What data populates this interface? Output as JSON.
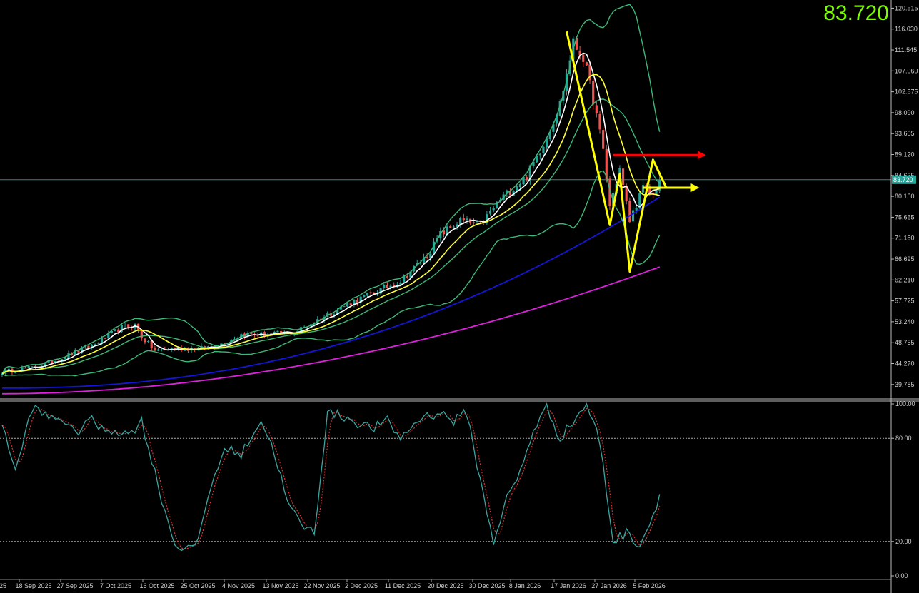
{
  "current_price": "83.720",
  "current_price_tag": "83.720",
  "colors": {
    "background": "#000000",
    "bull": "#26a69a",
    "bear": "#ef5350",
    "ma_fast": "#ffffff",
    "ma_mid": "#ffff33",
    "bollinger": "#3cb878",
    "ma_slow": "#1515d8",
    "ma_long": "#e020e0",
    "stoch_k": "#3aa6a0",
    "stoch_d": "#e03030",
    "price_text": "#7CFC00",
    "arrow_yellow": "#ffff00",
    "arrow_red": "#ff0000"
  },
  "chart_data": [
    {
      "type": "candlestick",
      "title": "",
      "ylim": [
        37.0,
        121.5
      ],
      "y_ticks": [
        "120.515",
        "116.030",
        "111.545",
        "107.060",
        "102.575",
        "98.090",
        "93.605",
        "89.120",
        "84.635",
        "80.150",
        "75.665",
        "71.180",
        "66.695",
        "62.210",
        "57.725",
        "53.240",
        "48.755",
        "44.270",
        "39.785"
      ],
      "x_ticks": [
        "25",
        "18 Sep 2025",
        "27 Sep 2025",
        "7 Oct 2025",
        "16 Oct 2025",
        "25 Oct 2025",
        "4 Nov 2025",
        "13 Nov 2025",
        "22 Nov 2025",
        "2 Dec 2025",
        "11 Dec 2025",
        "20 Dec 2025",
        "30 Dec 2025",
        "8 Jan 2026",
        "17 Jan 2026",
        "27 Jan 2026",
        "5 Feb 2026"
      ],
      "close_anchors": [
        [
          0,
          42.5
        ],
        [
          10,
          43.5
        ],
        [
          18,
          45.5
        ],
        [
          28,
          48.5
        ],
        [
          36,
          52.0
        ],
        [
          40,
          52.5
        ],
        [
          42,
          50.0
        ],
        [
          46,
          47.0
        ],
        [
          52,
          47.5
        ],
        [
          60,
          47.5
        ],
        [
          66,
          48.5
        ],
        [
          72,
          50.5
        ],
        [
          80,
          50.5
        ],
        [
          88,
          51.0
        ],
        [
          96,
          54.0
        ],
        [
          104,
          57.0
        ],
        [
          112,
          59.5
        ],
        [
          120,
          62.0
        ],
        [
          128,
          67.5
        ],
        [
          132,
          72.0
        ],
        [
          138,
          75.0
        ],
        [
          144,
          74.0
        ],
        [
          150,
          79.5
        ],
        [
          158,
          84.5
        ],
        [
          164,
          93.0
        ],
        [
          168,
          100.0
        ],
        [
          172,
          113.0
        ],
        [
          175,
          110.0
        ],
        [
          178,
          101.0
        ],
        [
          181,
          90.0
        ],
        [
          183,
          78.0
        ],
        [
          186,
          86.0
        ],
        [
          189,
          75.0
        ],
        [
          193,
          82.0
        ],
        [
          196,
          80.5
        ],
        [
          198,
          83.72
        ]
      ],
      "candle_count": 199,
      "overlays": [
        {
          "name": "",
          "period": 5,
          "color": "#ffffff"
        },
        {
          "name": "",
          "period": 12,
          "color": "#ffff33"
        },
        {
          "name": "",
          "period": 20,
          "color": "#3cb878",
          "bands": true
        },
        {
          "name": "",
          "period": 50,
          "color": "#1515d8"
        },
        {
          "name": "",
          "period": 100,
          "color": "#e020e0"
        }
      ],
      "horizontal_line": 83.72,
      "annotations": {
        "yellow_path": [
          [
            170,
            115.5
          ],
          [
            183,
            74.0
          ],
          [
            186,
            85.0
          ],
          [
            189,
            64.0
          ],
          [
            196,
            88.0
          ],
          [
            200,
            82.0
          ]
        ],
        "yellow_arrow_right": {
          "y": 82.0,
          "x_from": 193,
          "x_to": 210
        },
        "red_arrow_right": {
          "y": 89.0,
          "x_from": 184,
          "x_to": 212
        }
      }
    },
    {
      "type": "line",
      "title": "",
      "ylim": [
        0,
        100
      ],
      "y_ticks": [
        "100.00",
        "80.00",
        "20.00",
        "0.00"
      ],
      "levels": [
        80,
        20
      ],
      "k_anchors": [
        [
          0,
          90
        ],
        [
          4,
          60
        ],
        [
          9,
          98
        ],
        [
          14,
          92
        ],
        [
          18,
          92
        ],
        [
          22,
          82
        ],
        [
          26,
          92
        ],
        [
          30,
          85
        ],
        [
          34,
          85
        ],
        [
          38,
          82
        ],
        [
          42,
          90
        ],
        [
          48,
          45
        ],
        [
          52,
          18
        ],
        [
          58,
          15
        ],
        [
          64,
          60
        ],
        [
          68,
          75
        ],
        [
          72,
          70
        ],
        [
          76,
          85
        ],
        [
          78,
          90
        ],
        [
          82,
          72
        ],
        [
          86,
          42
        ],
        [
          90,
          30
        ],
        [
          94,
          25
        ],
        [
          98,
          95
        ],
        [
          104,
          92
        ],
        [
          108,
          88
        ],
        [
          112,
          86
        ],
        [
          116,
          90
        ],
        [
          120,
          80
        ],
        [
          126,
          92
        ],
        [
          132,
          95
        ],
        [
          136,
          90
        ],
        [
          140,
          95
        ],
        [
          144,
          55
        ],
        [
          148,
          20
        ],
        [
          152,
          45
        ],
        [
          156,
          60
        ],
        [
          160,
          85
        ],
        [
          164,
          98
        ],
        [
          168,
          80
        ],
        [
          172,
          90
        ],
        [
          176,
          100
        ],
        [
          180,
          78
        ],
        [
          184,
          20
        ],
        [
          188,
          25
        ],
        [
          192,
          18
        ],
        [
          196,
          35
        ],
        [
          200,
          60
        ]
      ],
      "d_lag": 2,
      "k_color": "#3aa6a0",
      "d_color": "#e03030"
    }
  ]
}
